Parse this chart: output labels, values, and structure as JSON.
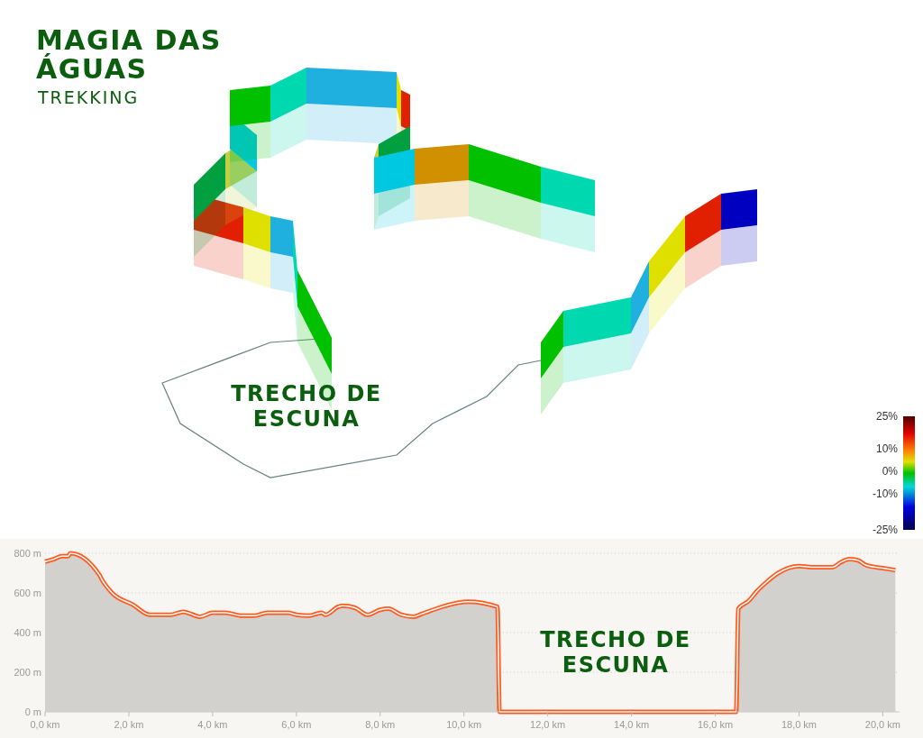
{
  "chart_data": {
    "type": "area",
    "title": "MAGIA DAS ÁGUAS",
    "subtitle": "TREKKING",
    "x": [
      0,
      0.2,
      0.4,
      0.55,
      0.6,
      1.3,
      1.35,
      1.6,
      2.1,
      2.5,
      3.0,
      3.3,
      3.7,
      4.0,
      4.3,
      4.7,
      5.0,
      5.3,
      5.5,
      5.8,
      6.0,
      6.3,
      6.6,
      6.7,
      7.0,
      7.1,
      7.4,
      7.7,
      8.0,
      8.2,
      8.5,
      8.8,
      9.0,
      9.2,
      10.1,
      10.8,
      10.85,
      16.5,
      16.55,
      16.8,
      17.0,
      17.2,
      17.5,
      18.0,
      18.3,
      18.8,
      19.0,
      19.2,
      19.4,
      19.6,
      20.0,
      20.3
    ],
    "series": [
      {
        "color": "#ff5a1f",
        "values": [
          758,
          770,
          785,
          785,
          800,
          690,
          670,
          600,
          540,
          490,
          490,
          505,
          480,
          500,
          500,
          485,
          485,
          500,
          500,
          500,
          490,
          485,
          500,
          490,
          530,
          535,
          525,
          490,
          515,
          520,
          490,
          480,
          495,
          510,
          556,
          530,
          0,
          0,
          520,
          560,
          610,
          650,
          700,
          735,
          730,
          730,
          755,
          770,
          765,
          740,
          725,
          715
        ]
      }
    ],
    "xlim": [
      0,
      20.4
    ],
    "ylim": [
      0,
      800
    ],
    "xticks": [
      {
        "value": 0,
        "label": "0,0 km"
      },
      {
        "value": 2,
        "label": "2,0 km"
      },
      {
        "value": 4,
        "label": "4,0 km"
      },
      {
        "value": 6,
        "label": "6,0 km"
      },
      {
        "value": 8,
        "label": "8,0 km"
      },
      {
        "value": 10,
        "label": "10,0 km"
      },
      {
        "value": 12,
        "label": "12,0 km"
      },
      {
        "value": 14,
        "label": "14,0 km"
      },
      {
        "value": 16,
        "label": "16,0 km"
      },
      {
        "value": 18,
        "label": "18,0 km"
      },
      {
        "value": 20,
        "label": "20,0 km"
      }
    ],
    "yticks": [
      {
        "value": 0,
        "label": "0 m"
      },
      {
        "value": 200,
        "label": "200 m"
      },
      {
        "value": 400,
        "label": "400 m"
      },
      {
        "value": 600,
        "label": "600 m"
      },
      {
        "value": 800,
        "label": "800 m"
      }
    ],
    "grid": "y",
    "annotations": [
      "TRECHO DE ESCUNA",
      "TRECHO DE ESCUNA",
      "25%",
      "10%",
      "0%",
      "-10%",
      "-25%"
    ]
  }
}
